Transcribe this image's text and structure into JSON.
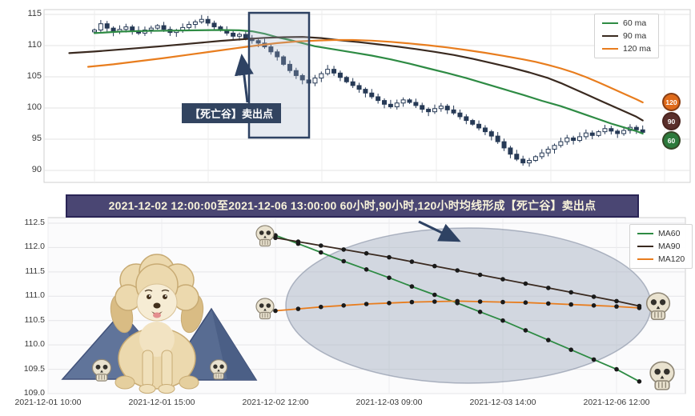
{
  "banner": {
    "text": "2021-12-02 12:00:00至2021-12-06 13:00:00 60小时,90小时,120小时均线形成【死亡谷】卖出点"
  },
  "icons": {
    "skull": "skull-icon",
    "poodle": "poodle-illustration",
    "mountains": "mountain-illustration"
  },
  "colors": {
    "ma60": "#2e8b44",
    "ma90": "#3a2a20",
    "ma120": "#e87d1e",
    "candle": "#273a56",
    "highlight_border": "#2e4263",
    "banner_bg": "#4a4673",
    "annotation_bg": "#324460",
    "ellipse_fill": "#aeb8c6"
  },
  "chart_data": [
    {
      "type": "candlestick",
      "title": "",
      "ylim": [
        88.5,
        116.2
      ],
      "y_ticks": [
        115,
        110,
        105,
        100,
        95,
        90
      ],
      "legend": [
        "60 ma",
        "90 ma",
        "120 ma"
      ],
      "legend_position": "top-right",
      "grid": true,
      "annotation": "【死亡谷】卖出点",
      "badges": [
        {
          "label": "120",
          "color": "#df6a1a"
        },
        {
          "label": "90",
          "color": "#5a2f2b"
        },
        {
          "label": "60",
          "color": "#2c7a3c"
        }
      ],
      "candles_close": [
        112.5,
        113.5,
        112.8,
        112.2,
        112.6,
        113.0,
        112.4,
        112.0,
        112.5,
        112.8,
        113.2,
        112.6,
        112.1,
        112.4,
        112.9,
        113.4,
        113.8,
        114.2,
        113.6,
        113.0,
        112.5,
        112.0,
        111.5,
        111.8,
        111.2,
        110.8,
        110.4,
        109.8,
        109.0,
        108.2,
        107.0,
        106.0,
        105.2,
        104.5,
        104.0,
        104.8,
        105.5,
        106.2,
        105.6,
        104.9,
        104.2,
        103.6,
        103.0,
        102.4,
        101.8,
        101.2,
        100.6,
        100.2,
        100.8,
        101.3,
        100.9,
        100.4,
        99.8,
        99.4,
        99.9,
        100.3,
        99.7,
        99.2,
        98.6,
        98.0,
        97.4,
        96.8,
        96.2,
        95.5,
        94.6,
        93.6,
        92.6,
        91.8,
        91.2,
        91.6,
        92.2,
        92.8,
        93.4,
        94.0,
        94.6,
        95.2,
        94.8,
        95.4,
        96.0,
        95.6,
        96.2,
        96.7,
        96.3,
        95.9,
        96.4,
        96.9,
        96.5,
        96.1
      ],
      "series": [
        {
          "name": "60 ma",
          "color": "#2e8b44",
          "points": [
            [
              0,
              112.0
            ],
            [
              4,
              112.25
            ],
            [
              8,
              112.35
            ],
            [
              12,
              112.4
            ],
            [
              16,
              112.45
            ],
            [
              20,
              112.5
            ],
            [
              23,
              112.45
            ],
            [
              25,
              112.3
            ],
            [
              27,
              111.9
            ],
            [
              29,
              111.35
            ],
            [
              31,
              110.9
            ],
            [
              33,
              110.4
            ],
            [
              35,
              109.9
            ],
            [
              38,
              109.4
            ],
            [
              41,
              108.9
            ],
            [
              44,
              108.4
            ],
            [
              47,
              107.8
            ],
            [
              50,
              107.1
            ],
            [
              53,
              106.35
            ],
            [
              56,
              105.6
            ],
            [
              59,
              104.8
            ],
            [
              62,
              103.9
            ],
            [
              65,
              103.0
            ],
            [
              68,
              102.1
            ],
            [
              71,
              101.15
            ],
            [
              74,
              100.3
            ],
            [
              76,
              99.6
            ],
            [
              78,
              98.9
            ],
            [
              80,
              98.2
            ],
            [
              82,
              97.5
            ],
            [
              84,
              96.9
            ],
            [
              86,
              96.3
            ],
            [
              87,
              95.9
            ]
          ]
        },
        {
          "name": "90 ma",
          "color": "#3a2a20",
          "points": [
            [
              -4,
              108.8
            ],
            [
              0,
              109.05
            ],
            [
              5,
              109.45
            ],
            [
              10,
              109.85
            ],
            [
              15,
              110.3
            ],
            [
              20,
              110.75
            ],
            [
              24,
              111.05
            ],
            [
              27,
              111.25
            ],
            [
              30,
              111.35
            ],
            [
              33,
              111.4
            ],
            [
              36,
              111.2
            ],
            [
              39,
              110.85
            ],
            [
              42,
              110.55
            ],
            [
              45,
              110.2
            ],
            [
              48,
              109.85
            ],
            [
              51,
              109.45
            ],
            [
              54,
              109.0
            ],
            [
              57,
              108.5
            ],
            [
              60,
              107.9
            ],
            [
              63,
              107.2
            ],
            [
              66,
              106.5
            ],
            [
              69,
              105.7
            ],
            [
              72,
              104.8
            ],
            [
              74,
              104.0
            ],
            [
              76,
              103.1
            ],
            [
              78,
              102.2
            ],
            [
              80,
              101.3
            ],
            [
              82,
              100.4
            ],
            [
              84,
              99.5
            ],
            [
              86,
              98.6
            ],
            [
              87,
              98.0
            ]
          ]
        },
        {
          "name": "120 ma",
          "color": "#e87d1e",
          "points": [
            [
              -1,
              106.6
            ],
            [
              3,
              107.0
            ],
            [
              7,
              107.5
            ],
            [
              11,
              108.0
            ],
            [
              15,
              108.55
            ],
            [
              19,
              109.1
            ],
            [
              23,
              109.65
            ],
            [
              26,
              110.05
            ],
            [
              29,
              110.4
            ],
            [
              32,
              110.65
            ],
            [
              35,
              110.8
            ],
            [
              38,
              110.9
            ],
            [
              41,
              110.9
            ],
            [
              44,
              110.8
            ],
            [
              47,
              110.6
            ],
            [
              50,
              110.35
            ],
            [
              53,
              110.05
            ],
            [
              56,
              109.7
            ],
            [
              59,
              109.3
            ],
            [
              62,
              108.85
            ],
            [
              65,
              108.35
            ],
            [
              68,
              107.8
            ],
            [
              70,
              107.4
            ],
            [
              72,
              106.9
            ],
            [
              74,
              106.35
            ],
            [
              76,
              105.7
            ],
            [
              78,
              104.95
            ],
            [
              80,
              104.1
            ],
            [
              82,
              103.2
            ],
            [
              84,
              102.3
            ],
            [
              86,
              101.4
            ],
            [
              87,
              100.9
            ]
          ]
        }
      ]
    },
    {
      "type": "line",
      "title": "",
      "ylim": [
        109.0,
        112.5
      ],
      "y_ticks": [
        112.5,
        112.0,
        111.5,
        111.0,
        110.5,
        110.0,
        109.5,
        109.0
      ],
      "x_ticks": [
        {
          "t": 0,
          "label": "2021-12-01 10:00"
        },
        {
          "t": 5,
          "label": "2021-12-01 15:00"
        },
        {
          "t": 10,
          "label": "2021-12-02 12:00"
        },
        {
          "t": 15,
          "label": "2021-12-03 09:00"
        },
        {
          "t": 20,
          "label": "2021-12-03 14:00"
        },
        {
          "t": 25,
          "label": "2021-12-06 12:00"
        }
      ],
      "legend": [
        "MA60",
        "MA90",
        "MA120"
      ],
      "legend_position": "top-right",
      "grid": true,
      "series": [
        {
          "name": "MA60",
          "color": "#2e8b44",
          "start_t": 10,
          "values": [
            112.25,
            112.08,
            111.9,
            111.72,
            111.55,
            111.38,
            111.2,
            111.03,
            110.86,
            110.68,
            110.5,
            110.3,
            110.1,
            109.9,
            109.7,
            109.5,
            109.25
          ]
        },
        {
          "name": "MA90",
          "color": "#3a2a20",
          "start_t": 10,
          "values": [
            112.2,
            112.12,
            112.04,
            111.96,
            111.88,
            111.8,
            111.71,
            111.62,
            111.53,
            111.44,
            111.35,
            111.26,
            111.17,
            111.08,
            110.99,
            110.9,
            110.8
          ]
        },
        {
          "name": "MA120",
          "color": "#e87d1e",
          "start_t": 10,
          "values": [
            110.7,
            110.74,
            110.78,
            110.81,
            110.84,
            110.86,
            110.88,
            110.89,
            110.9,
            110.89,
            110.88,
            110.87,
            110.85,
            110.83,
            110.81,
            110.79,
            110.76
          ]
        }
      ]
    }
  ]
}
